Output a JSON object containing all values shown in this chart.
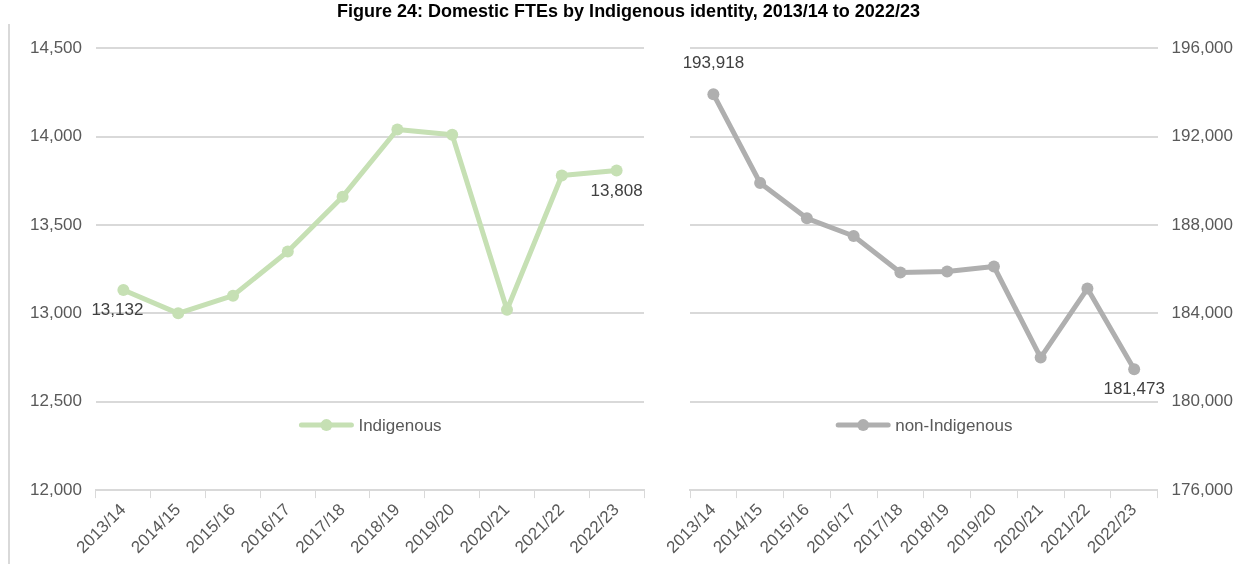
{
  "chart_data": [
    {
      "type": "line",
      "title": "Figure 24: Domestic FTEs by Indigenous identity, 2013/14 to 2022/23",
      "categories": [
        "2013/14",
        "2014/15",
        "2015/16",
        "2016/17",
        "2017/18",
        "2018/19",
        "2019/20",
        "2020/21",
        "2021/22",
        "2022/23"
      ],
      "series": [
        {
          "name": "Indigenous",
          "color": "#c6e0b4",
          "values": [
            13132,
            13000,
            13100,
            13350,
            13660,
            14040,
            14010,
            13020,
            13780,
            13808
          ],
          "value_labels": [
            "13,132",
            null,
            null,
            null,
            null,
            null,
            null,
            null,
            null,
            "13,808"
          ]
        }
      ],
      "ylim": [
        12000,
        14500
      ],
      "yticks": [
        {
          "value": 12000,
          "label": "12,000"
        },
        {
          "value": 12500,
          "label": "12,500"
        },
        {
          "value": 13000,
          "label": "13,000"
        },
        {
          "value": 13500,
          "label": "13,500"
        },
        {
          "value": 14000,
          "label": "14,000"
        },
        {
          "value": 14500,
          "label": "14,500"
        }
      ],
      "grid": "y",
      "legend": "bottom",
      "marker": "circle"
    },
    {
      "type": "line",
      "categories": [
        "2013/14",
        "2014/15",
        "2015/16",
        "2016/17",
        "2017/18",
        "2018/19",
        "2019/20",
        "2020/21",
        "2021/22",
        "2022/23"
      ],
      "series": [
        {
          "name": "non-Indigenous",
          "color": "#afafaf",
          "axis": "y2",
          "values": [
            193918,
            189900,
            188300,
            187500,
            185850,
            185890,
            186120,
            182000,
            185120,
            181473
          ],
          "value_labels": [
            "193,918",
            null,
            null,
            null,
            null,
            null,
            null,
            null,
            null,
            "181,473"
          ]
        }
      ],
      "y2lim": [
        176000,
        196000
      ],
      "y2ticks": [
        {
          "value": 176000,
          "label": "176,000"
        },
        {
          "value": 180000,
          "label": "180,000"
        },
        {
          "value": 184000,
          "label": "184,000"
        },
        {
          "value": 188000,
          "label": "188,000"
        },
        {
          "value": 192000,
          "label": "192,000"
        },
        {
          "value": 196000,
          "label": "196,000"
        }
      ],
      "grid": "y",
      "legend": "bottom",
      "marker": "circle"
    }
  ]
}
